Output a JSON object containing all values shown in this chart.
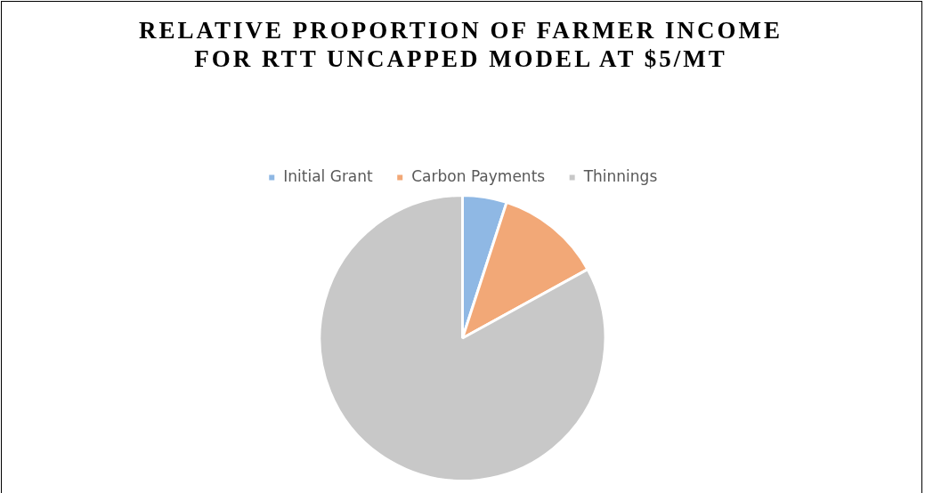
{
  "chart_data": {
    "type": "pie",
    "title": "RELATIVE PROPORTION OF FARMER INCOME FOR RTT UNCAPPED MODEL AT $5/MT",
    "categories": [
      "Initial Grant",
      "Carbon Payments",
      "Thinnings"
    ],
    "values": [
      5,
      12,
      83
    ],
    "colors": [
      "#8fb8e4",
      "#f2a877",
      "#c8c8c8"
    ],
    "legend": "top"
  }
}
